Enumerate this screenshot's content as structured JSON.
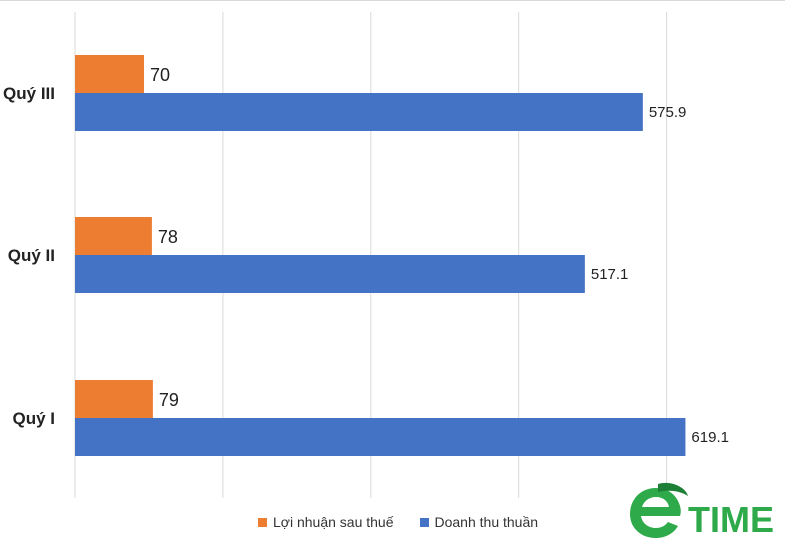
{
  "chart_data": {
    "type": "bar",
    "orientation": "horizontal",
    "categories": [
      "Quý III",
      "Quý II",
      "Quý I"
    ],
    "series": [
      {
        "name": "Lợi nhuận sau thuế",
        "values": [
          70,
          78,
          79
        ],
        "color": "#ED7D31"
      },
      {
        "name": "Doanh thu thuần",
        "values": [
          575.9,
          517.1,
          619.1
        ],
        "color": "#4472C4"
      }
    ],
    "data_labels": {
      "Lợi nhuận sau thuế": [
        "70",
        "78",
        "79"
      ],
      "Doanh thu thuần": [
        "575.9",
        "517.1",
        "619.1"
      ]
    },
    "xlim": [
      0,
      700
    ],
    "grid": true,
    "legend_position": "bottom"
  },
  "logo": {
    "text": "TIME",
    "icon": "e-leaf-logo-icon",
    "color": "#2EAA4A"
  }
}
